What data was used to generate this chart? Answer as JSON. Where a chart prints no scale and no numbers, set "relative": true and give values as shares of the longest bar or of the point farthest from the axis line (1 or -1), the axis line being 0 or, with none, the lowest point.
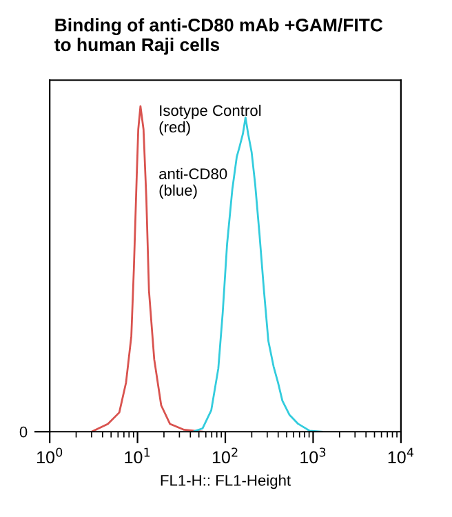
{
  "chart_data": {
    "type": "line",
    "title": "Binding of anti-CD80 mAb +GAM/FITC\nto human Raji cells",
    "xlabel": "FL1-H:: FL1-Height",
    "relative": true,
    "log": "x",
    "xlim": [
      1,
      10000
    ],
    "xticks": [
      {
        "value": 1,
        "label": "10$^{0}$"
      },
      {
        "value": 10,
        "label": "10$^{1}$"
      },
      {
        "value": 100,
        "label": "10$^{2}$"
      },
      {
        "value": 1000,
        "label": "10$^{3}$"
      },
      {
        "value": 10000,
        "label": "10$^{4}$"
      }
    ],
    "annotations": [
      "Isotype Control\n(red)",
      "anti-CD80\n(blue)",
      "0"
    ],
    "marker": "none",
    "line_style": "solid",
    "grid": false,
    "series": [
      {
        "color": "#d9534f",
        "x": [
          3.0,
          4.6,
          6.2,
          7.4,
          8.5,
          9.1,
          9.8,
          10.2,
          10.8,
          11.7,
          12.6,
          13.5,
          15.5,
          18.6,
          23.4,
          33.9,
          55
        ],
        "values": [
          0,
          0.024,
          0.059,
          0.151,
          0.293,
          0.505,
          0.788,
          0.929,
          1,
          0.929,
          0.717,
          0.434,
          0.222,
          0.081,
          0.024,
          0.006,
          0
        ]
      },
      {
        "color": "#33ccdd",
        "x": [
          42.7,
          55,
          69.2,
          83.2,
          93.3,
          104.7,
          120.2,
          134.9,
          144.5,
          158.5,
          169.8,
          182.0,
          199.5,
          218.8,
          245.5,
          275.4,
          309.0,
          354.8,
          398.1,
          446.7,
          537.0,
          676.1,
          912.0,
          1259
        ],
        "values": [
          0,
          0.01,
          0.066,
          0.194,
          0.364,
          0.576,
          0.745,
          0.844,
          0.873,
          0.915,
          0.965,
          0.915,
          0.858,
          0.76,
          0.604,
          0.434,
          0.279,
          0.2,
          0.151,
          0.095,
          0.052,
          0.024,
          0.003,
          0
        ]
      }
    ]
  }
}
